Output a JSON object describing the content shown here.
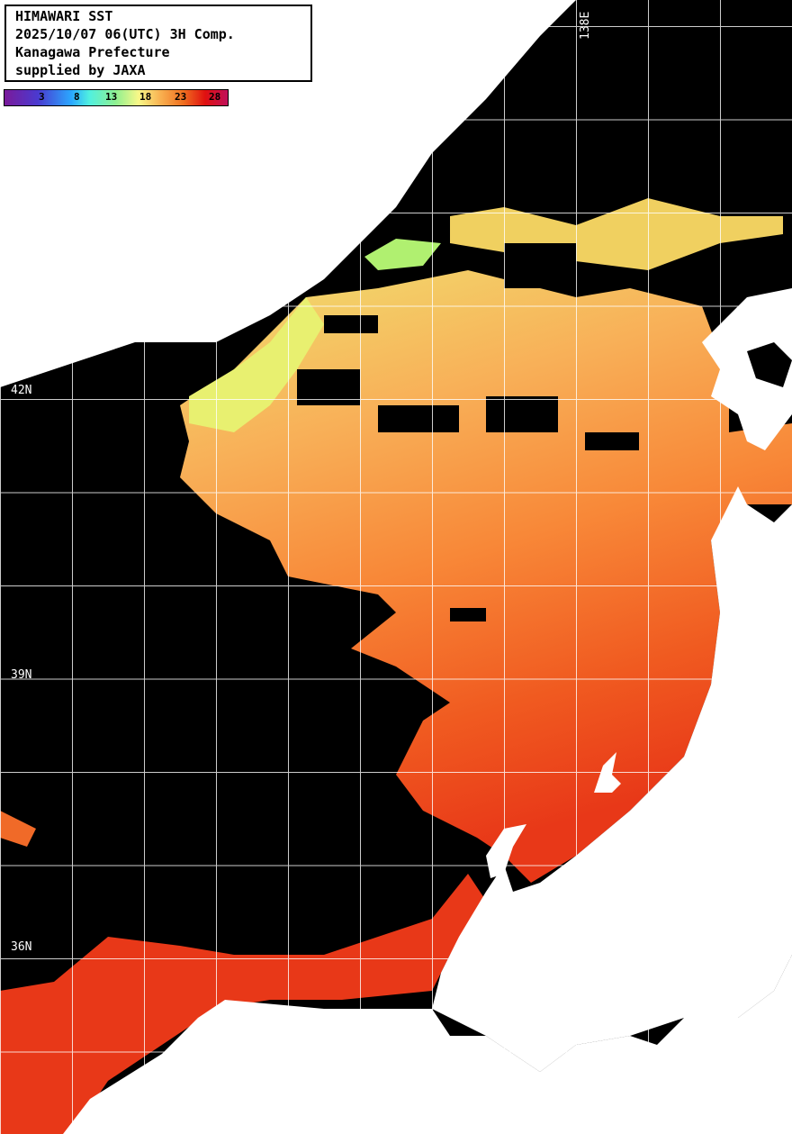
{
  "info_box": {
    "line1": "HIMAWARI SST",
    "line2": "2025/10/07 06(UTC) 3H Comp.",
    "line3": "Kanagawa Prefecture",
    "line4": "supplied by JAXA"
  },
  "colorbar": {
    "unit_ticks": [
      "3",
      "8",
      "13",
      "18",
      "23",
      "28"
    ],
    "colors": [
      "#7a1a9a",
      "#4a3ad0",
      "#2aa8ff",
      "#50f0e0",
      "#90f090",
      "#f8f888",
      "#f8b050",
      "#f07020",
      "#e01010",
      "#c0105a"
    ]
  },
  "grid": {
    "lat_labels": [
      "42N",
      "39N",
      "36N"
    ],
    "lon_labels": [
      "138E"
    ]
  },
  "colors": {
    "land": "#ffffff",
    "no_data": "#000000",
    "grid": "#ffffff",
    "sst_cool": "#e8f070",
    "sst_mid": "#f8a850",
    "sst_warm": "#f06a28",
    "sst_hot": "#e83818"
  }
}
